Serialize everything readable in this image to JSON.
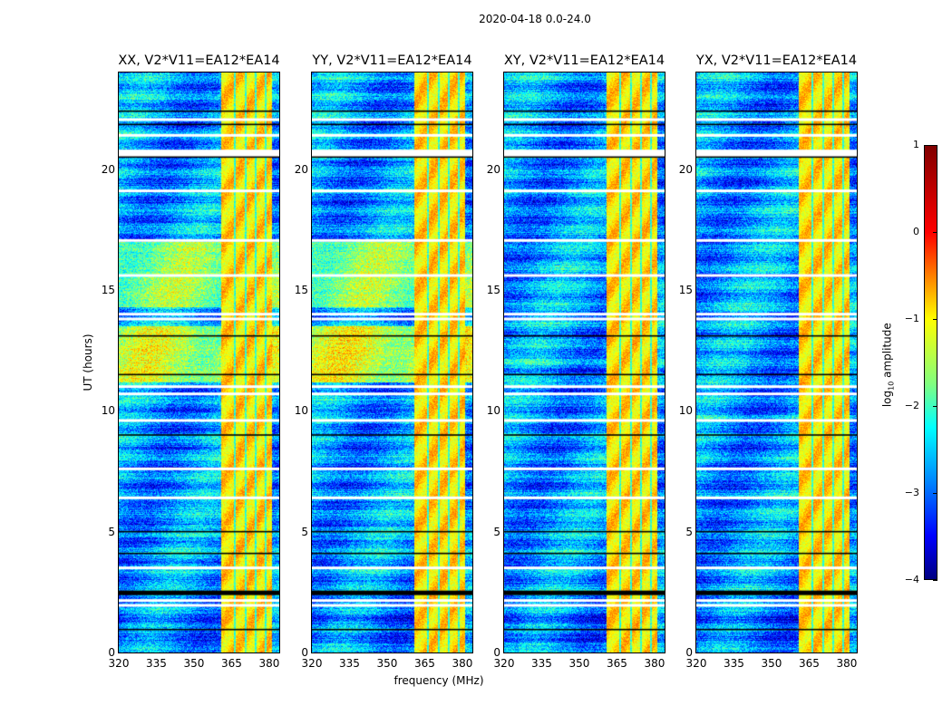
{
  "suptitle": "2020-04-18 0.0-24.0",
  "chart_data": {
    "type": "heatmap",
    "title": "2020-04-18 0.0-24.0",
    "panels": [
      {
        "title": "XX, V2*V11=EA12*EA14",
        "bright_bands": [
          [
            13.5,
            11.2,
            -1.2
          ],
          [
            17.0,
            14.3,
            -1.5
          ]
        ]
      },
      {
        "title": "YY, V2*V11=EA12*EA14",
        "bright_bands": [
          [
            13.5,
            11.2,
            -1.1
          ],
          [
            17.0,
            14.3,
            -1.5
          ]
        ]
      },
      {
        "title": "XY, V2*V11=EA12*EA14",
        "bright_bands": []
      },
      {
        "title": "YX, V2*V11=EA12*EA14",
        "bright_bands": []
      }
    ],
    "xlabel": "frequency (MHz)",
    "ylabel": "UT (hours)",
    "xlim": [
      320,
      384
    ],
    "ylim": [
      0,
      24
    ],
    "xticks": [
      "320",
      "335",
      "350",
      "365",
      "380"
    ],
    "xtick_values": [
      320,
      335,
      350,
      365,
      380
    ],
    "yticks": [
      "0",
      "5",
      "10",
      "15",
      "20"
    ],
    "ytick_values": [
      0,
      5,
      10,
      15,
      20
    ],
    "rfi_band_mhz": [
      360.5,
      381
    ],
    "flagged_hours": [
      22.05,
      21.4,
      20.75,
      20.6,
      19.1,
      17.05,
      15.6,
      14.0,
      13.8,
      11.0,
      10.7,
      9.6,
      7.6,
      6.4,
      3.5,
      2.15,
      1.95
    ],
    "dropout_hours": [
      22.4,
      21.85,
      20.5,
      13.1,
      11.5,
      9.0,
      5.0,
      4.1,
      2.45,
      2.5,
      0.95
    ],
    "colorbar": {
      "label_main": "log",
      "label_sub": "10",
      "label_tail": " amplitude",
      "min": -4,
      "max": 1,
      "ticks": [
        "1",
        "0",
        "−1",
        "−2",
        "−3",
        "−4"
      ],
      "tick_values": [
        1,
        0,
        -1,
        -2,
        -3,
        -4
      ],
      "colormap": "jet"
    }
  }
}
